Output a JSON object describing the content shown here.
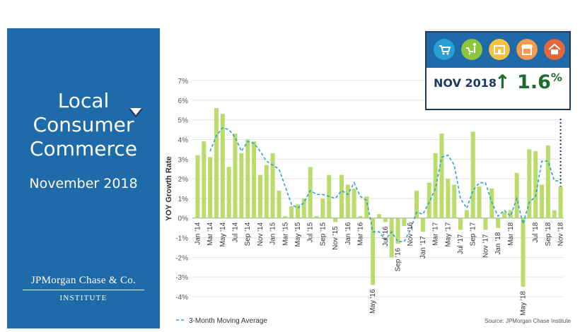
{
  "panel": {
    "title_lines": [
      "Local",
      "Consumer",
      "Commerce"
    ],
    "subtitle": "November 2018",
    "logo": "JPMorgan Chase & Co.",
    "logo_sub": "INSTITUTE",
    "bg_color": "#1f6aa8"
  },
  "callout": {
    "period": "NOV 2018",
    "value": "1.6",
    "unit": "%",
    "direction": "up",
    "value_color": "#1e6b2c",
    "icons": [
      {
        "name": "grocery-cart-icon",
        "color": "#2a9fd6"
      },
      {
        "name": "shopping-cart-person-icon",
        "color": "#8cc63f"
      },
      {
        "name": "storefront-icon",
        "color": "#f5c242"
      },
      {
        "name": "shop-awning-icon",
        "color": "#f39a4c"
      },
      {
        "name": "house-icon",
        "color": "#e8663d"
      }
    ]
  },
  "chart_data": {
    "type": "bar",
    "ylabel": "YOY Growth Rate",
    "ylim": [
      -4,
      7
    ],
    "yticks": [
      7,
      6,
      5,
      4,
      3,
      2,
      1,
      0,
      -1,
      -2,
      -3,
      -4
    ],
    "ytick_labels": [
      "7%",
      "6%",
      "5%",
      "4%",
      "3%",
      "2%",
      "1%",
      "0%",
      "-1%",
      "-2%",
      "-3%",
      "-4%"
    ],
    "grid": true,
    "categories": [
      "Jan '14",
      "Feb '14",
      "Mar '14",
      "Apr '14",
      "May '14",
      "Jun '14",
      "Jul '14",
      "Aug '14",
      "Sep '14",
      "Oct '14",
      "Nov '14",
      "Dec '14",
      "Jan '15",
      "Feb '15",
      "Mar '15",
      "Apr '15",
      "May '15",
      "Jun '15",
      "Jul '15",
      "Aug '15",
      "Sep '15",
      "Oct '15",
      "Nov '15",
      "Dec '15",
      "Jan '16",
      "Feb '16",
      "Mar '16",
      "Apr '16",
      "May '16",
      "Jun '16",
      "Jul '16",
      "Aug '16",
      "Sep '16",
      "Oct '16",
      "Nov '16",
      "Dec '16",
      "Jan '17",
      "Feb '17",
      "Mar '17",
      "Apr '17",
      "May '17",
      "Jun '17",
      "Jul '17",
      "Aug '17",
      "Sep '17",
      "Oct '17",
      "Nov '17",
      "Dec '17",
      "Jan '18",
      "Feb '18",
      "Mar '18",
      "Apr '18",
      "May '18",
      "Jun '18",
      "Jul '18",
      "Aug '18",
      "Sep '18",
      "Oct '18",
      "Nov '18"
    ],
    "tick_labels": [
      "Jan '14",
      "Mar '14",
      "May '14",
      "Jul '14",
      "Sep '14",
      "Nov '14",
      "Jan '15",
      "Mar '15",
      "May '15",
      "Jul '15",
      "Sep '15",
      "Nov '15",
      "Jan '16",
      "Mar '16",
      "May '16",
      "Jul '16",
      "Sep '16",
      "Nov '16",
      "Jan '17",
      "Mar '17",
      "May '17",
      "Jul '17",
      "Sep '17",
      "Nov '17",
      "Jan '18",
      "Mar '18",
      "May '18",
      "Jul '18",
      "Sep '18",
      "Nov '18"
    ],
    "series": [
      {
        "name": "",
        "type": "bar",
        "color": "#b9dc6a",
        "values": [
          3.2,
          3.9,
          3.1,
          5.6,
          5.3,
          2.6,
          4.3,
          3.3,
          4.0,
          3.9,
          2.2,
          2.7,
          3.3,
          1.4,
          0.1,
          0.6,
          0.7,
          1.0,
          2.6,
          0.1,
          1.0,
          2.2,
          -0.2,
          2.2,
          1.7,
          1.5,
          0.1,
          1.1,
          -3.4,
          0.2,
          -0.2,
          -2.0,
          -1.3,
          -0.4,
          0.0,
          1.4,
          -0.7,
          1.8,
          3.3,
          4.3,
          2.0,
          1.7,
          -0.6,
          0.4,
          4.4,
          1.6,
          -0.6,
          1.5,
          -0.5,
          0.3,
          0.4,
          2.3,
          -3.5,
          3.5,
          3.4,
          1.7,
          3.7,
          0.4,
          1.6
        ]
      },
      {
        "name": "3-Month Moving Average",
        "type": "line",
        "style": "dashed",
        "color": "#2b9fd9",
        "values": [
          null,
          null,
          3.4,
          4.2,
          4.6,
          4.5,
          4.1,
          3.4,
          3.9,
          3.8,
          3.4,
          2.9,
          2.7,
          2.5,
          1.6,
          0.7,
          0.5,
          0.8,
          1.4,
          1.2,
          1.2,
          1.1,
          1.0,
          1.4,
          1.2,
          1.8,
          1.1,
          0.9,
          -0.7,
          -0.7,
          -1.1,
          -0.7,
          -1.2,
          -1.2,
          -0.6,
          0.3,
          0.2,
          0.8,
          1.5,
          3.1,
          3.2,
          2.7,
          1.0,
          0.5,
          1.4,
          1.8,
          1.8,
          0.8,
          0.1,
          0.4,
          0.1,
          1.0,
          -0.3,
          0.8,
          1.1,
          2.9,
          2.9,
          1.9,
          1.9
        ]
      }
    ],
    "highlight_last": true,
    "legend": "bottom-left",
    "source": "Source:  JPMorgan Chase Institute"
  }
}
